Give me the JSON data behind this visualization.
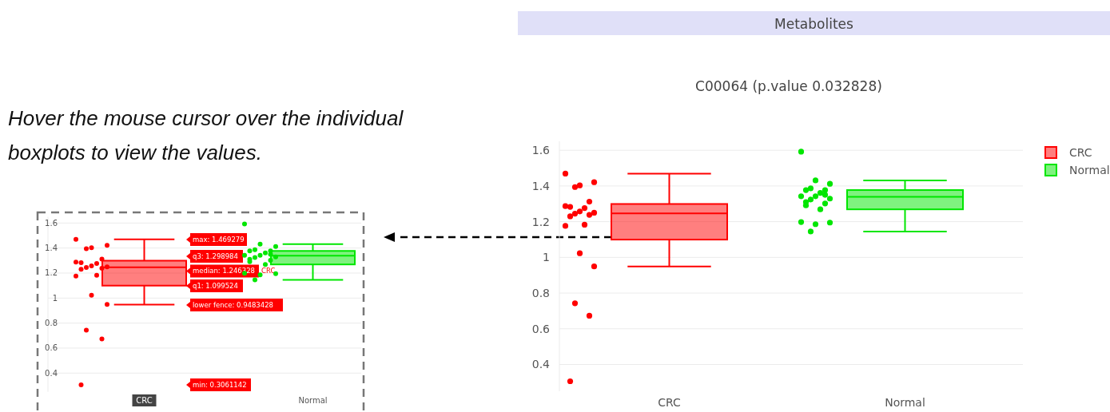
{
  "chart_data": [
    {
      "type": "box",
      "title": "Metabolites",
      "subtitle": "C00064 (p.value 0.032828)",
      "categories": [
        "CRC",
        "Normal"
      ],
      "ylim": [
        0.25,
        1.65
      ],
      "yticks": [
        0.4,
        0.6,
        0.8,
        1,
        1.2,
        1.4,
        1.6
      ],
      "grid": "y",
      "legend": "top right",
      "marker": "circle",
      "series": [
        {
          "name": "CRC",
          "color": "#ff0000",
          "boxes": [
            {
              "low": 0.9483428,
              "q1": 1.099524,
              "median": 1.246328,
              "q3": 1.298984,
              "high": 1.469279
            },
            null
          ]
        },
        {
          "name": "Normal",
          "color": "#00e600",
          "boxes": [
            null,
            {
              "low": 1.145,
              "q1": 1.269,
              "median": 1.339,
              "q3": 1.377,
              "high": 1.431
            }
          ]
        },
        {
          "type": "scatter",
          "color": "#ff0000",
          "x": [
            "CRC",
            "CRC",
            "CRC",
            "CRC",
            "CRC",
            "CRC",
            "CRC",
            "CRC",
            "CRC",
            "CRC",
            "CRC",
            "CRC",
            "CRC",
            "CRC",
            "CRC",
            "CRC",
            "CRC",
            "CRC",
            "CRC",
            "CRC"
          ],
          "values": [
            1.469,
            1.403,
            1.421,
            1.394,
            1.312,
            1.283,
            1.276,
            1.287,
            1.257,
            1.25,
            1.245,
            1.238,
            1.23,
            1.183,
            1.176,
            1.023,
            0.949,
            0.743,
            0.673,
            0.306
          ]
        },
        {
          "type": "scatter",
          "color": "#00e600",
          "x": [
            "Normal",
            "Normal",
            "Normal",
            "Normal",
            "Normal",
            "Normal",
            "Normal",
            "Normal",
            "Normal",
            "Normal",
            "Normal",
            "Normal",
            "Normal",
            "Normal",
            "Normal",
            "Normal",
            "Normal",
            "Normal",
            "Normal",
            "Normal"
          ],
          "values": [
            1.592,
            1.431,
            1.412,
            1.387,
            1.377,
            1.377,
            1.361,
            1.342,
            1.342,
            1.329,
            1.324,
            1.302,
            1.291,
            1.269,
            1.198,
            1.186,
            1.195,
            1.145,
            1.35,
            1.31
          ]
        }
      ]
    },
    {
      "type": "box",
      "categories": [
        "CRC",
        "Normal"
      ],
      "ylim": [
        0.25,
        1.65
      ],
      "yticks": [
        0.4,
        0.6,
        0.8,
        1,
        1.2,
        1.4,
        1.6
      ],
      "grid": "y",
      "marker": "circle",
      "series": [
        {
          "name": "CRC",
          "color": "#ff0000",
          "boxes": [
            {
              "low": 0.9483428,
              "q1": 1.099524,
              "median": 1.246328,
              "q3": 1.298984,
              "high": 1.469279
            },
            null
          ]
        },
        {
          "color": "#00e600",
          "boxes": [
            null,
            {
              "low": 1.145,
              "q1": 1.269,
              "median": 1.339,
              "q3": 1.377,
              "high": 1.431
            }
          ]
        },
        {
          "type": "scatter",
          "color": "#ff0000",
          "x": [
            "CRC",
            "CRC",
            "CRC",
            "CRC",
            "CRC",
            "CRC",
            "CRC",
            "CRC",
            "CRC",
            "CRC",
            "CRC",
            "CRC",
            "CRC",
            "CRC",
            "CRC",
            "CRC",
            "CRC",
            "CRC",
            "CRC",
            "CRC"
          ],
          "values": [
            1.469,
            1.403,
            1.421,
            1.394,
            1.312,
            1.283,
            1.276,
            1.287,
            1.257,
            1.25,
            1.245,
            1.238,
            1.23,
            1.183,
            1.176,
            1.023,
            0.949,
            0.743,
            0.673,
            0.306
          ]
        },
        {
          "type": "scatter",
          "color": "#00e600",
          "x": [
            "Normal",
            "Normal",
            "Normal",
            "Normal",
            "Normal",
            "Normal",
            "Normal",
            "Normal",
            "Normal",
            "Normal",
            "Normal",
            "Normal",
            "Normal",
            "Normal",
            "Normal",
            "Normal",
            "Normal",
            "Normal",
            "Normal",
            "Normal"
          ],
          "values": [
            1.592,
            1.431,
            1.412,
            1.387,
            1.377,
            1.377,
            1.361,
            1.342,
            1.342,
            1.329,
            1.324,
            1.302,
            1.291,
            1.269,
            1.198,
            1.186,
            1.195,
            1.145,
            1.35,
            1.31
          ]
        }
      ],
      "annotations": [
        "Hover the mouse cursor over the individual boxplots to view the values.",
        "max: 1.469279",
        "q3: 1.298984",
        "median: 1.246328",
        "q1: 1.099524",
        "lower fence: 0.9483428",
        "min: 0.3061142"
      ]
    }
  ]
}
